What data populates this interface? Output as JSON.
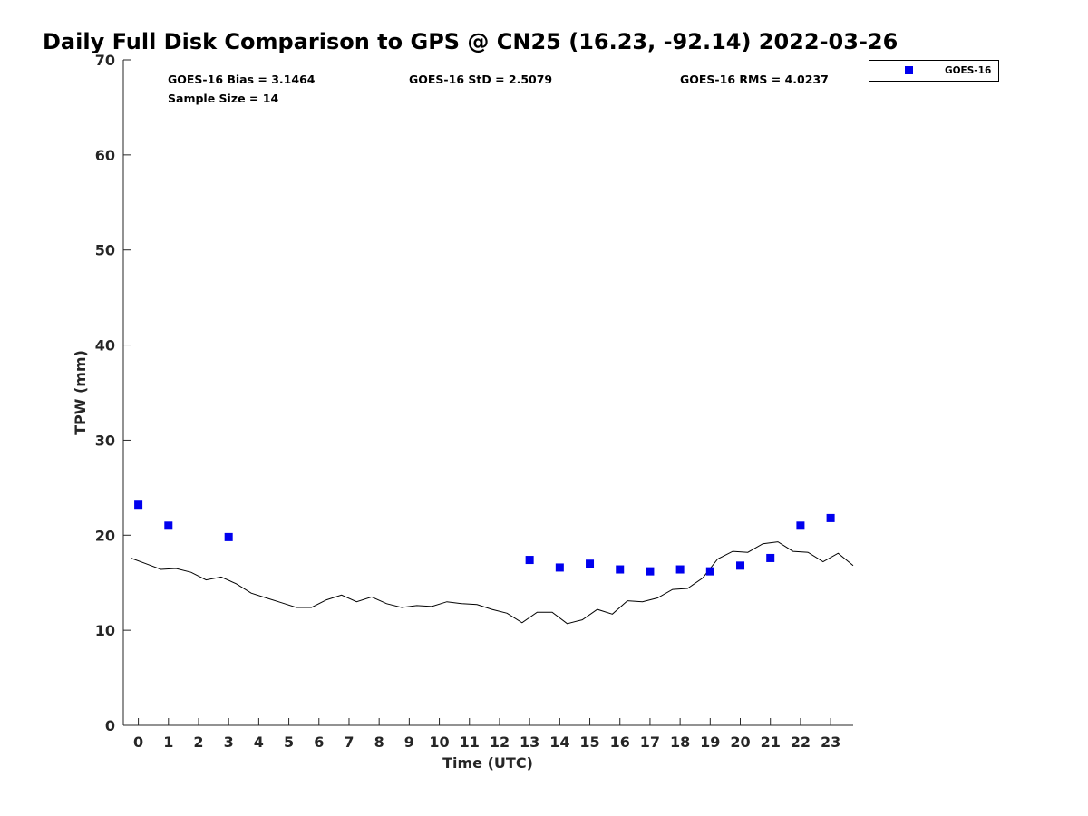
{
  "chart_data": {
    "type": "scatter",
    "title": "Daily Full Disk Comparison to GPS @ CN25 (16.23, -92.14) 2022-03-26",
    "xlabel": "Time (UTC)",
    "ylabel": "TPW (mm)",
    "xlim": [
      -0.5,
      23.75
    ],
    "ylim": [
      0,
      70
    ],
    "xticks": [
      0,
      1,
      2,
      3,
      4,
      5,
      6,
      7,
      8,
      9,
      10,
      11,
      12,
      13,
      14,
      15,
      16,
      17,
      18,
      19,
      20,
      21,
      22,
      23
    ],
    "yticks": [
      0,
      10,
      20,
      30,
      40,
      50,
      60,
      70
    ],
    "grid": false,
    "legend_position": "top-right",
    "stats": {
      "bias": "GOES-16 Bias = 3.1464",
      "std": "GOES-16 StD = 2.5079",
      "rms": "GOES-16 RMS = 4.0237",
      "sample": "Sample Size = 14"
    },
    "series": [
      {
        "name": "GOES-16",
        "type": "scatter",
        "marker": "square",
        "color": "#0000ee",
        "x": [
          0,
          1,
          3,
          13,
          14,
          15,
          16,
          17,
          18,
          19,
          20,
          21,
          22,
          23
        ],
        "y": [
          23.2,
          21.0,
          19.8,
          17.4,
          16.6,
          17.0,
          16.4,
          16.2,
          16.4,
          16.2,
          16.8,
          17.6,
          21.0,
          21.8
        ]
      },
      {
        "type": "line",
        "color": "#000000",
        "x": [
          -0.25,
          0.25,
          0.75,
          1.25,
          1.75,
          2.25,
          2.75,
          3.25,
          3.75,
          4.25,
          4.75,
          5.25,
          5.75,
          6.25,
          6.75,
          7.25,
          7.75,
          8.25,
          8.75,
          9.25,
          9.75,
          10.25,
          10.75,
          11.25,
          11.75,
          12.25,
          12.75,
          13.25,
          13.75,
          14.25,
          14.75,
          15.25,
          15.75,
          16.25,
          16.75,
          17.25,
          17.75,
          18.25,
          18.75,
          19.25,
          19.75,
          20.25,
          20.75,
          21.25,
          21.75,
          22.25,
          22.75,
          23.25,
          23.75
        ],
        "y": [
          17.6,
          17.0,
          16.4,
          16.5,
          16.1,
          15.3,
          15.6,
          14.9,
          13.9,
          13.4,
          12.9,
          12.4,
          12.4,
          13.2,
          13.7,
          13.0,
          13.5,
          12.8,
          12.4,
          12.6,
          12.5,
          13.0,
          12.8,
          12.7,
          12.2,
          11.8,
          10.8,
          11.9,
          11.9,
          10.7,
          11.1,
          12.2,
          11.7,
          13.1,
          13.0,
          13.4,
          14.3,
          14.4,
          15.5,
          17.5,
          18.3,
          18.2,
          19.1,
          19.3,
          18.3,
          18.2,
          17.2,
          18.1,
          16.8
        ]
      }
    ]
  }
}
